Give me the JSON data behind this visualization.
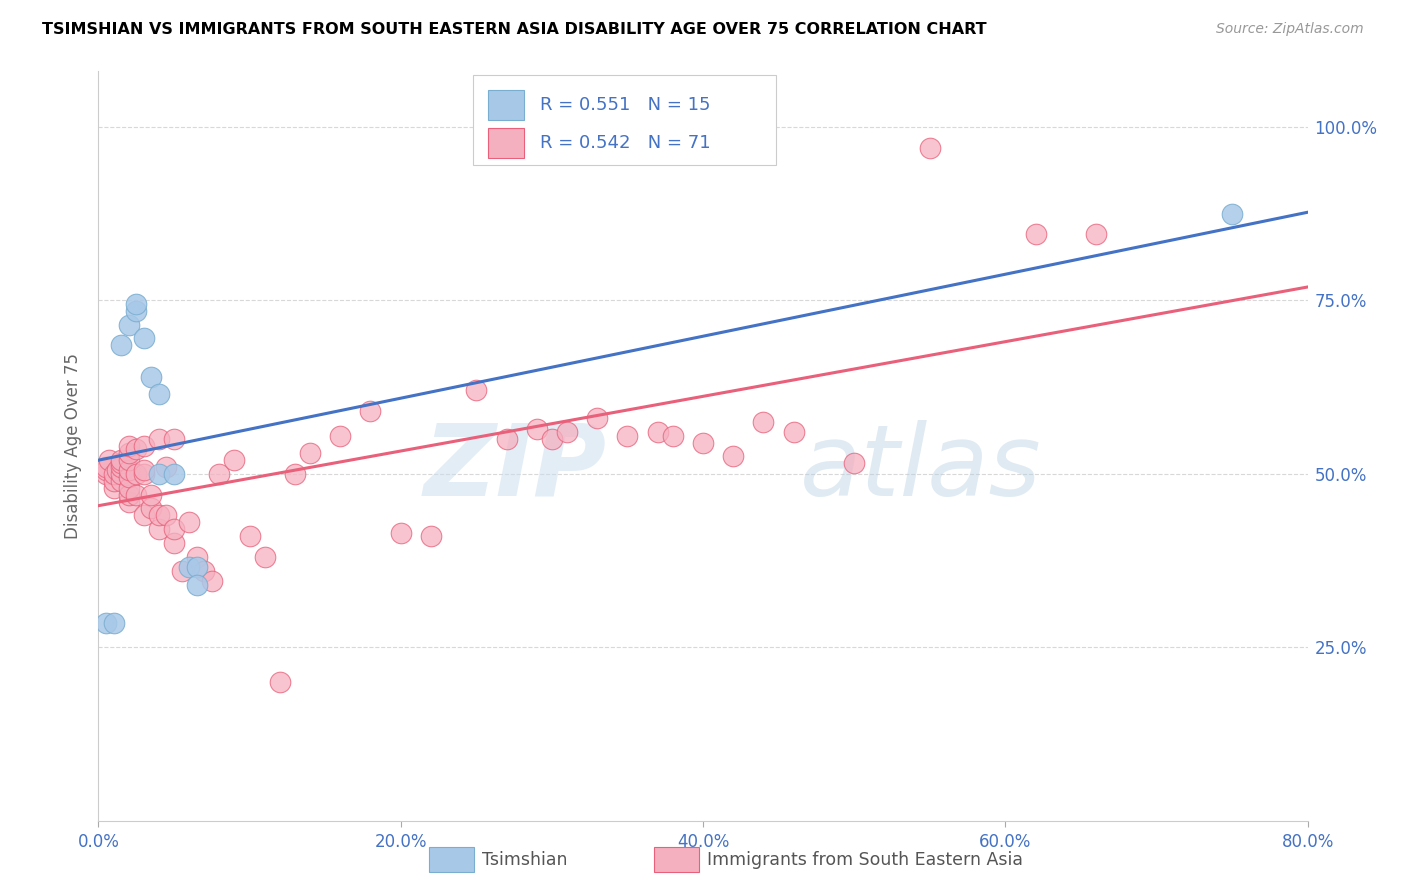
{
  "title": "TSIMSHIAN VS IMMIGRANTS FROM SOUTH EASTERN ASIA DISABILITY AGE OVER 75 CORRELATION CHART",
  "source": "Source: ZipAtlas.com",
  "ylabel": "Disability Age Over 75",
  "xmin": 0.0,
  "xmax": 0.8,
  "ymin": 0.0,
  "ymax": 1.08,
  "xtick_labels": [
    "0.0%",
    "20.0%",
    "40.0%",
    "60.0%",
    "80.0%"
  ],
  "xtick_vals": [
    0.0,
    0.2,
    0.4,
    0.6,
    0.8
  ],
  "ytick_labels": [
    "25.0%",
    "50.0%",
    "75.0%",
    "100.0%"
  ],
  "ytick_vals": [
    0.25,
    0.5,
    0.75,
    1.0
  ],
  "legend_label1": "Tsimshian",
  "legend_label2": "Immigrants from South Eastern Asia",
  "R1": "0.551",
  "N1": "15",
  "R2": "0.542",
  "N2": "71",
  "color_blue": "#a8c8e8",
  "color_pink": "#f5b0c0",
  "line_blue": "#4472c4",
  "line_pink": "#e8607a",
  "text_blue": "#4472c4",
  "grid_color": "#d8d8d8",
  "watermark_color": "#d0e4f0",
  "tsimshian_x": [
    0.005,
    0.01,
    0.015,
    0.02,
    0.025,
    0.025,
    0.03,
    0.035,
    0.04,
    0.04,
    0.05,
    0.06,
    0.065,
    0.065,
    0.75
  ],
  "tsimshian_y": [
    0.285,
    0.285,
    0.685,
    0.715,
    0.735,
    0.745,
    0.695,
    0.64,
    0.615,
    0.5,
    0.5,
    0.365,
    0.365,
    0.34,
    0.875
  ],
  "pink_x": [
    0.005,
    0.005,
    0.005,
    0.007,
    0.01,
    0.01,
    0.01,
    0.012,
    0.015,
    0.015,
    0.015,
    0.015,
    0.015,
    0.02,
    0.02,
    0.02,
    0.02,
    0.02,
    0.02,
    0.02,
    0.02,
    0.025,
    0.025,
    0.025,
    0.03,
    0.03,
    0.03,
    0.03,
    0.035,
    0.035,
    0.04,
    0.04,
    0.04,
    0.045,
    0.045,
    0.05,
    0.05,
    0.05,
    0.055,
    0.06,
    0.065,
    0.07,
    0.075,
    0.08,
    0.09,
    0.1,
    0.11,
    0.12,
    0.13,
    0.14,
    0.16,
    0.18,
    0.2,
    0.22,
    0.25,
    0.27,
    0.29,
    0.3,
    0.31,
    0.33,
    0.35,
    0.37,
    0.38,
    0.4,
    0.42,
    0.44,
    0.46,
    0.5,
    0.55,
    0.62,
    0.66
  ],
  "pink_y": [
    0.5,
    0.505,
    0.51,
    0.52,
    0.48,
    0.49,
    0.5,
    0.505,
    0.49,
    0.5,
    0.51,
    0.515,
    0.52,
    0.46,
    0.47,
    0.48,
    0.495,
    0.505,
    0.52,
    0.53,
    0.54,
    0.47,
    0.5,
    0.535,
    0.44,
    0.5,
    0.505,
    0.54,
    0.45,
    0.47,
    0.42,
    0.44,
    0.55,
    0.44,
    0.51,
    0.4,
    0.42,
    0.55,
    0.36,
    0.43,
    0.38,
    0.36,
    0.345,
    0.5,
    0.52,
    0.41,
    0.38,
    0.2,
    0.5,
    0.53,
    0.555,
    0.59,
    0.415,
    0.41,
    0.62,
    0.55,
    0.565,
    0.55,
    0.56,
    0.58,
    0.555,
    0.56,
    0.555,
    0.545,
    0.525,
    0.575,
    0.56,
    0.515,
    0.97,
    0.845,
    0.845
  ]
}
